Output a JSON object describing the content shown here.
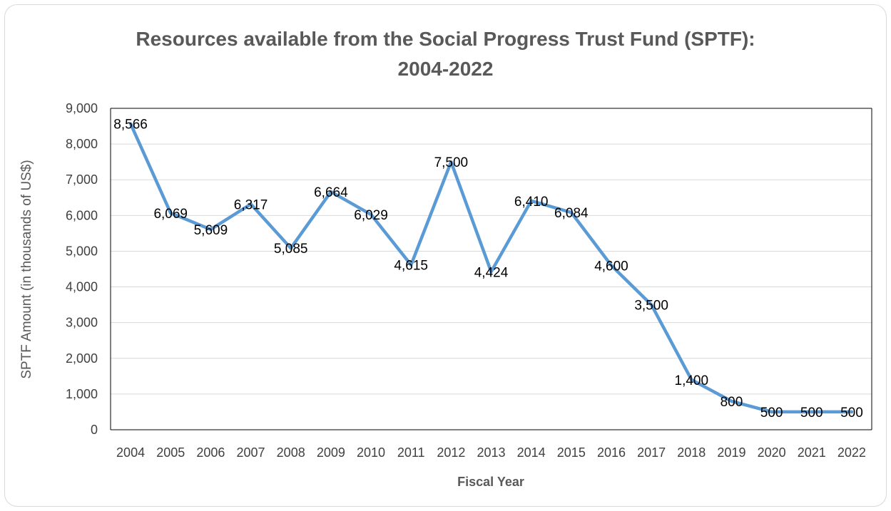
{
  "chart_data": {
    "type": "line",
    "title": "Resources available from the Social Progress Trust Fund (SPTF): 2004-2022",
    "title_lines": [
      "Resources available from the Social Progress Trust Fund (SPTF):",
      "2004-2022"
    ],
    "xlabel": "Fiscal Year",
    "ylabel": "SPTF Amount (in thousands of US$)",
    "ylim": [
      0,
      9000
    ],
    "y_ticks": [
      0,
      1000,
      2000,
      3000,
      4000,
      5000,
      6000,
      7000,
      8000,
      9000
    ],
    "y_tick_labels": [
      "0",
      "1,000",
      "2,000",
      "3,000",
      "4,000",
      "5,000",
      "6,000",
      "7,000",
      "8,000",
      "9,000"
    ],
    "grid": true,
    "legend": "none",
    "line_color": "#5b9bd5",
    "categories": [
      "2004",
      "2005",
      "2006",
      "2007",
      "2008",
      "2009",
      "2010",
      "2011",
      "2012",
      "2013",
      "2014",
      "2015",
      "2016",
      "2017",
      "2018",
      "2019",
      "2020",
      "2021",
      "2022"
    ],
    "values": [
      8566,
      6069,
      5609,
      6317,
      5085,
      6664,
      6029,
      4615,
      7500,
      4424,
      6410,
      6084,
      4600,
      3500,
      1400,
      800,
      500,
      500,
      500
    ],
    "data_labels": [
      "8,566",
      "6,069",
      "5,609",
      "6,317",
      "5,085",
      "6,664",
      "6,029",
      "4,615",
      "7,500",
      "4,424",
      "6,410",
      "6,084",
      "4,600",
      "3,500",
      "1,400",
      "800",
      "500",
      "500",
      "500"
    ]
  }
}
